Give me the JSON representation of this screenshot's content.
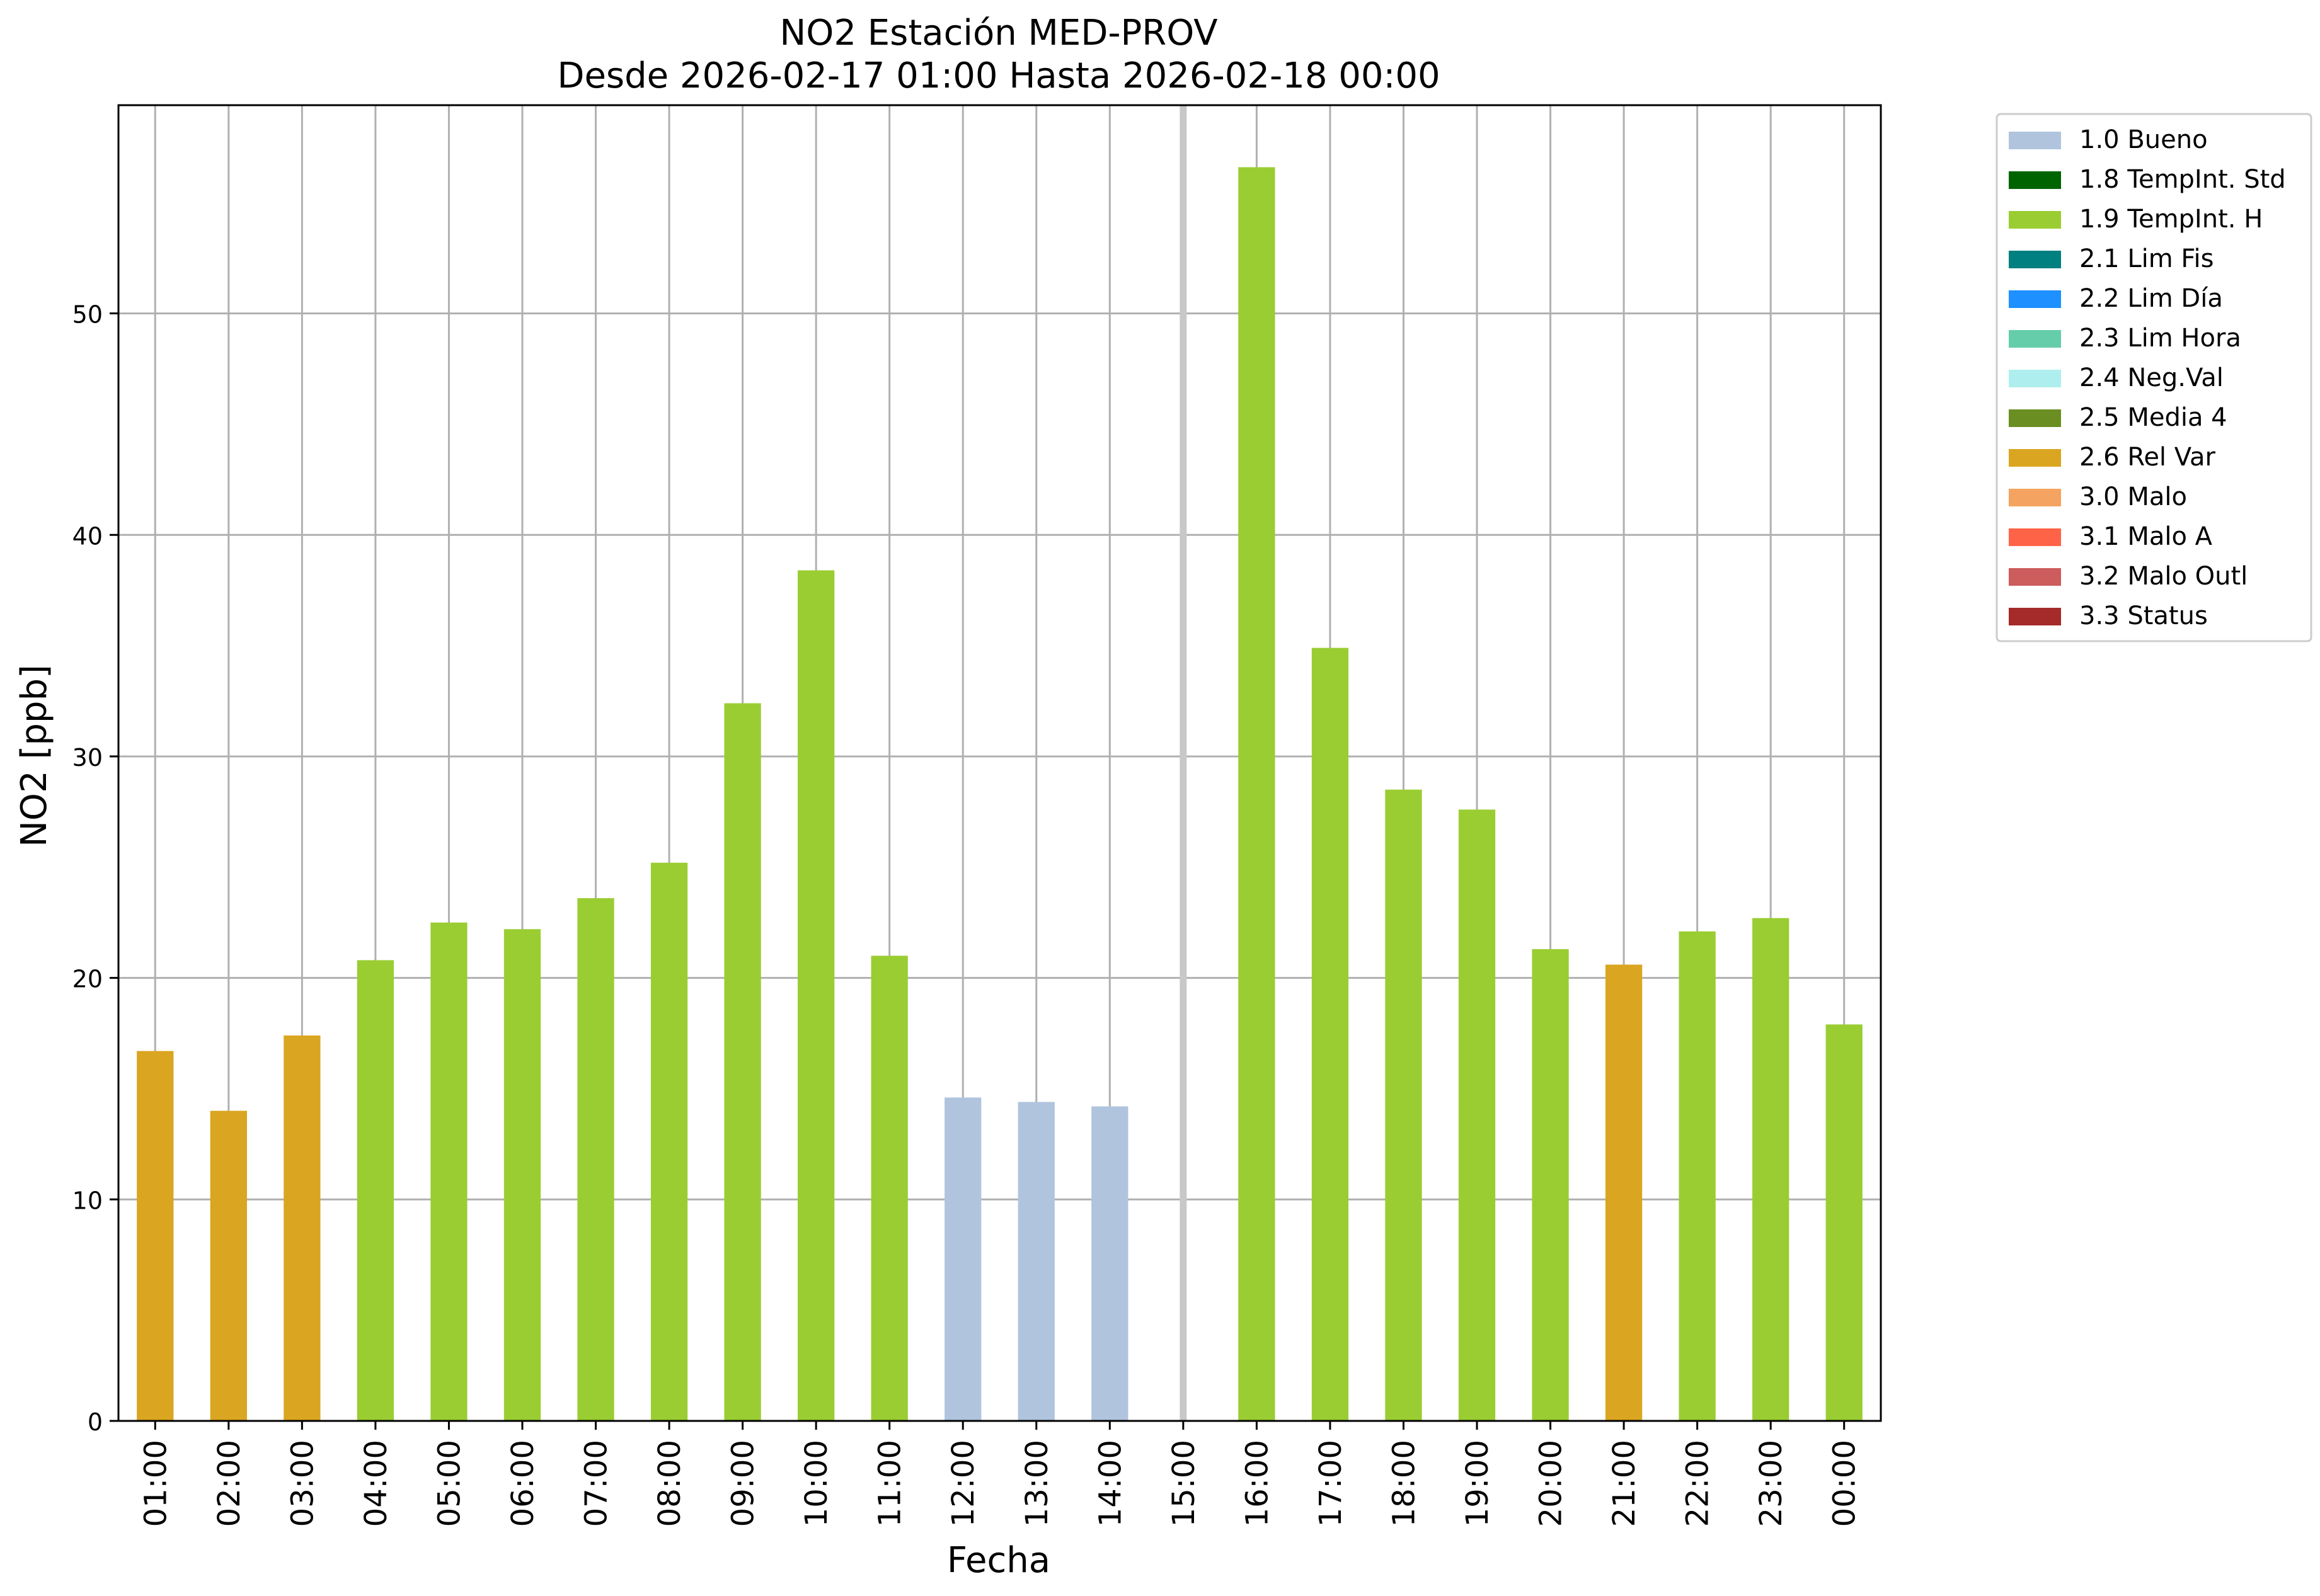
{
  "chart_data": {
    "type": "bar",
    "title_line1": "NO2 Estación MED-PROV",
    "title_line2": "Desde 2026-02-17 01:00 Hasta 2026-02-18 00:00",
    "xlabel": "Fecha",
    "ylabel": "NO2 [ppb]",
    "ylim": [
      0,
      59.4
    ],
    "yticks": [
      0,
      10,
      20,
      30,
      40,
      50
    ],
    "grid": true,
    "legend_position": "outside-right-top",
    "categories": [
      "01:00",
      "02:00",
      "03:00",
      "04:00",
      "05:00",
      "06:00",
      "07:00",
      "08:00",
      "09:00",
      "10:00",
      "11:00",
      "12:00",
      "13:00",
      "14:00",
      "15:00",
      "16:00",
      "17:00",
      "18:00",
      "19:00",
      "20:00",
      "21:00",
      "22:00",
      "23:00",
      "00:00"
    ],
    "values": [
      16.7,
      14.0,
      17.4,
      20.8,
      22.5,
      22.2,
      23.6,
      25.2,
      32.4,
      38.4,
      21.0,
      14.6,
      14.4,
      14.2,
      null,
      56.6,
      34.9,
      28.5,
      27.6,
      21.3,
      20.6,
      22.1,
      22.7,
      17.9
    ],
    "flags": [
      "2.6",
      "2.6",
      "2.6",
      "1.9",
      "1.9",
      "1.9",
      "1.9",
      "1.9",
      "1.9",
      "1.9",
      "1.9",
      "1.0",
      "1.0",
      "1.0",
      null,
      "1.9",
      "1.9",
      "1.9",
      "1.9",
      "1.9",
      "2.6",
      "1.9",
      "1.9",
      "1.9"
    ],
    "missing_marker_category": "15:00",
    "legend": [
      {
        "code": "1.0",
        "label": "1.0 Bueno",
        "color": "#b0c4de"
      },
      {
        "code": "1.8",
        "label": "1.8 TempInt. Std",
        "color": "#006400"
      },
      {
        "code": "1.9",
        "label": "1.9 TempInt. H",
        "color": "#9acd32"
      },
      {
        "code": "2.1",
        "label": "2.1 Lim Fis",
        "color": "#008080"
      },
      {
        "code": "2.2",
        "label": "2.2 Lim Día",
        "color": "#1e90ff"
      },
      {
        "code": "2.3",
        "label": "2.3 Lim Hora",
        "color": "#66cdaa"
      },
      {
        "code": "2.4",
        "label": "2.4 Neg.Val",
        "color": "#afeeee"
      },
      {
        "code": "2.5",
        "label": "2.5 Media 4",
        "color": "#6b8e23"
      },
      {
        "code": "2.6",
        "label": "2.6 Rel Var",
        "color": "#daa520"
      },
      {
        "code": "3.0",
        "label": "3.0 Malo",
        "color": "#f4a460"
      },
      {
        "code": "3.1",
        "label": "3.1 Malo A",
        "color": "#ff6347"
      },
      {
        "code": "3.2",
        "label": "3.2 Malo Outl",
        "color": "#cd5c5c"
      },
      {
        "code": "3.3",
        "label": "3.3 Status",
        "color": "#a52a2a"
      }
    ],
    "grid_color": "#b0b0b0",
    "missing_marker_color": "#c8c8c8"
  }
}
